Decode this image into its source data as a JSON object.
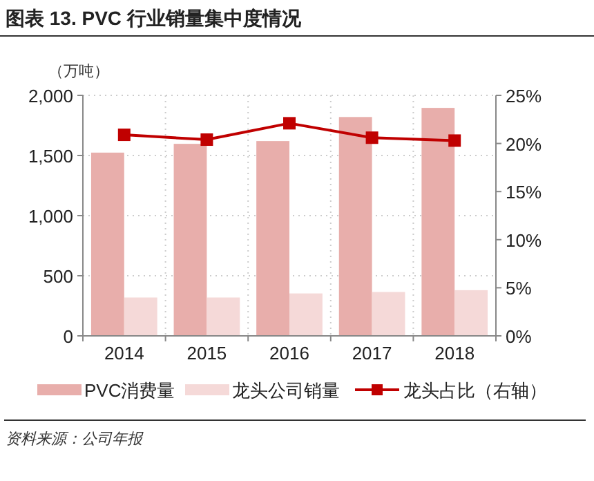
{
  "chart_data": {
    "type": "bar",
    "title": "图表 13. PVC 行业销量集中度情况",
    "ylabel": "（万吨）",
    "categories": [
      "2014",
      "2015",
      "2016",
      "2017",
      "2018"
    ],
    "series": [
      {
        "name": "PVC消费量",
        "color": "#e8aeab",
        "values": [
          1524,
          1597,
          1620,
          1820,
          1896
        ]
      },
      {
        "name": "龙头公司销量",
        "color": "#f5d9d8",
        "values": [
          319,
          319,
          353,
          365,
          380
        ]
      },
      {
        "name": "龙头占比（右轴）",
        "type": "line",
        "axis": "y2",
        "color": "#c00000",
        "values": [
          20.9,
          20.4,
          22.1,
          20.6,
          20.3
        ]
      }
    ],
    "ylim": [
      0,
      2000
    ],
    "yticks": [
      0,
      500,
      {
        "value": 1000,
        "label": "1,000"
      },
      {
        "value": 1500,
        "label": "1,500"
      },
      {
        "value": 2000,
        "label": "2,000"
      }
    ],
    "y2lim": [
      0,
      25
    ],
    "y2ticks": [
      {
        "value": 0,
        "label": "0%"
      },
      {
        "value": 5,
        "label": "5%"
      },
      {
        "value": 10,
        "label": "10%"
      },
      {
        "value": 15,
        "label": "15%"
      },
      {
        "value": 20,
        "label": "20%"
      },
      {
        "value": 25,
        "label": "25%"
      }
    ],
    "grid": true,
    "legend": "bottom",
    "marker": "square",
    "line_style": "solid",
    "annotations": [
      "资料来源：公司年报"
    ]
  }
}
